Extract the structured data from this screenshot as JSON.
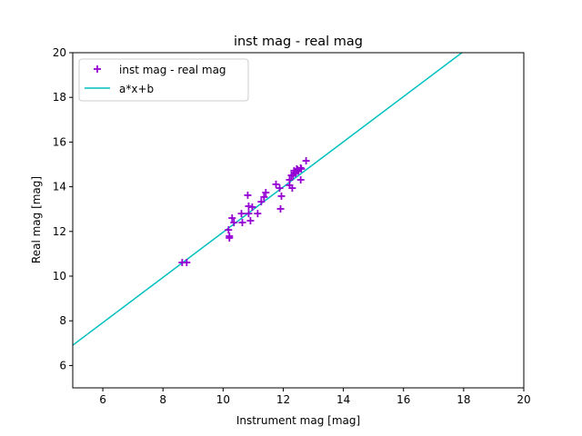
{
  "chart_data": {
    "type": "scatter",
    "title": "inst mag - real mag",
    "xlabel": "Instrument mag [mag]",
    "ylabel": "Real mag [mag]",
    "xlim": [
      5,
      20
    ],
    "ylim": [
      5,
      20
    ],
    "xticks": [
      6,
      8,
      10,
      12,
      14,
      16,
      18,
      20
    ],
    "yticks": [
      6,
      8,
      10,
      12,
      14,
      16,
      18,
      20
    ],
    "grid": false,
    "legend_placement": "top-left",
    "series": [
      {
        "name": "inst mag - real mag",
        "kind": "scatter",
        "marker": "+",
        "color": "#9400d3",
        "points": [
          [
            12.76,
            15.16
          ],
          [
            12.58,
            14.84
          ],
          [
            12.48,
            14.76
          ],
          [
            12.36,
            14.72
          ],
          [
            12.42,
            14.63
          ],
          [
            12.33,
            14.51
          ],
          [
            12.58,
            14.31
          ],
          [
            12.27,
            14.51
          ],
          [
            12.21,
            14.31
          ],
          [
            12.21,
            14.07
          ],
          [
            12.3,
            13.94
          ],
          [
            11.76,
            14.11
          ],
          [
            11.88,
            13.94
          ],
          [
            11.94,
            13.58
          ],
          [
            11.91,
            13.01
          ],
          [
            11.42,
            13.74
          ],
          [
            11.36,
            13.54
          ],
          [
            11.27,
            13.33
          ],
          [
            10.82,
            13.62
          ],
          [
            10.85,
            13.13
          ],
          [
            10.97,
            13.09
          ],
          [
            10.61,
            12.8
          ],
          [
            10.85,
            12.8
          ],
          [
            11.15,
            12.8
          ],
          [
            10.3,
            12.6
          ],
          [
            10.64,
            12.4
          ],
          [
            10.91,
            12.48
          ],
          [
            10.36,
            12.4
          ],
          [
            10.18,
            12.07
          ],
          [
            10.21,
            11.71
          ],
          [
            10.21,
            11.79
          ],
          [
            8.64,
            10.61
          ],
          [
            8.79,
            10.61
          ],
          [
            12.5,
            14.7
          ],
          [
            12.6,
            14.8
          ],
          [
            12.4,
            14.6
          ],
          [
            12.45,
            14.8
          ]
        ]
      },
      {
        "name": "a*x+b",
        "kind": "line",
        "color": "#00bfbf",
        "a": 1.0116,
        "b": 1.85
      }
    ]
  }
}
